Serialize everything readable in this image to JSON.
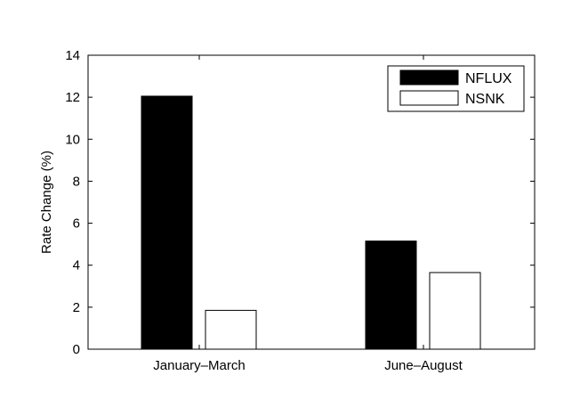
{
  "chart_data": {
    "type": "bar",
    "categories": [
      "January–March",
      "June–August"
    ],
    "series": [
      {
        "name": "NFLUX",
        "values": [
          12.05,
          5.15
        ],
        "color": "#000000"
      },
      {
        "name": "NSNK",
        "values": [
          1.85,
          3.65
        ],
        "color": "#ffffff"
      }
    ],
    "xlabel": "",
    "ylabel": "Rate Change (%)",
    "ylim": [
      0,
      14
    ],
    "yticks": [
      0,
      2,
      4,
      6,
      8,
      10,
      12,
      14
    ],
    "grid": false,
    "legend": "top-right"
  }
}
